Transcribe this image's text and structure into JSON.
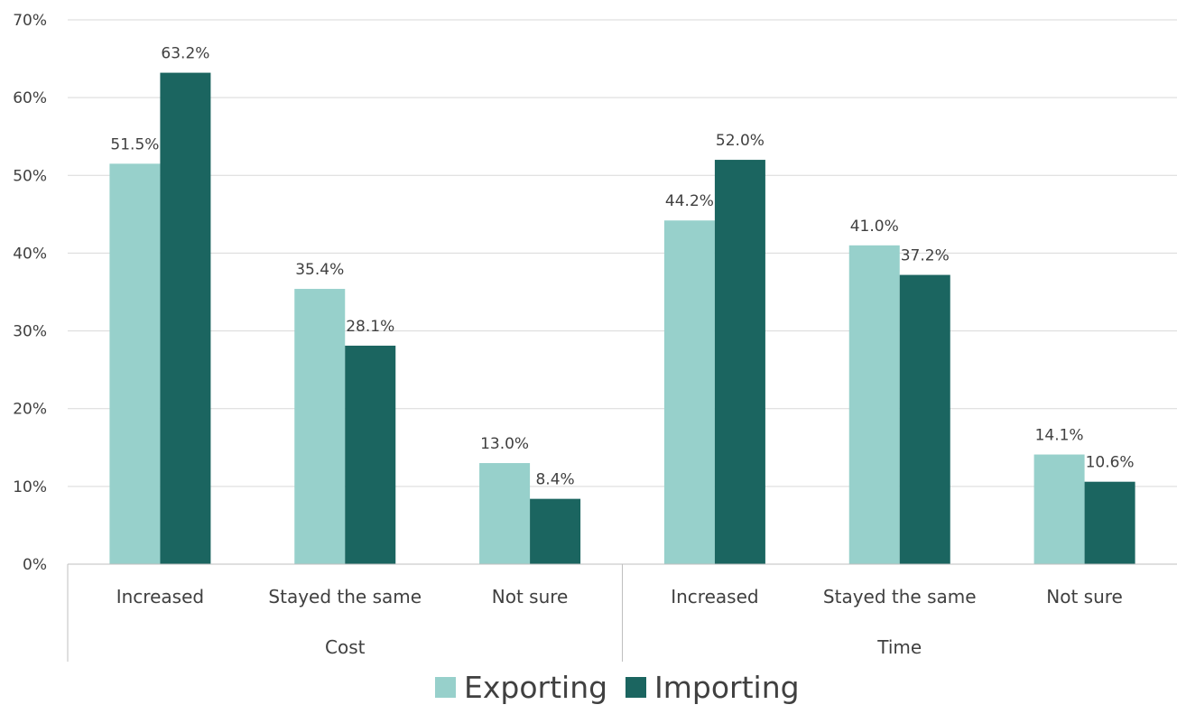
{
  "chart_data": {
    "type": "bar",
    "title": "",
    "xlabel": "",
    "ylabel": "",
    "ylim": [
      0,
      70
    ],
    "yticks": [
      0,
      10,
      20,
      30,
      40,
      50,
      60,
      70
    ],
    "ytick_labels": [
      "0%",
      "10%",
      "20%",
      "30%",
      "40%",
      "50%",
      "60%",
      "70%"
    ],
    "grid": true,
    "legend_position": "bottom",
    "groups": [
      {
        "label": "Cost",
        "categories": [
          "Increased",
          "Stayed the same",
          "Not sure"
        ]
      },
      {
        "label": "Time",
        "categories": [
          "Increased",
          "Stayed the same",
          "Not sure"
        ]
      }
    ],
    "series": [
      {
        "name": "Exporting",
        "color": "#97D0CB",
        "values": [
          51.5,
          35.4,
          13.0,
          44.2,
          41.0,
          14.1
        ],
        "labels": [
          "51.5%",
          "35.4%",
          "13.0%",
          "44.2%",
          "41.0%",
          "14.1%"
        ]
      },
      {
        "name": "Importing",
        "color": "#1B6560",
        "values": [
          63.2,
          28.1,
          8.4,
          52.0,
          37.2,
          10.6
        ],
        "labels": [
          "63.2%",
          "28.1%",
          "8.4%",
          "52.0%",
          "37.2%",
          "10.6%"
        ]
      }
    ]
  }
}
